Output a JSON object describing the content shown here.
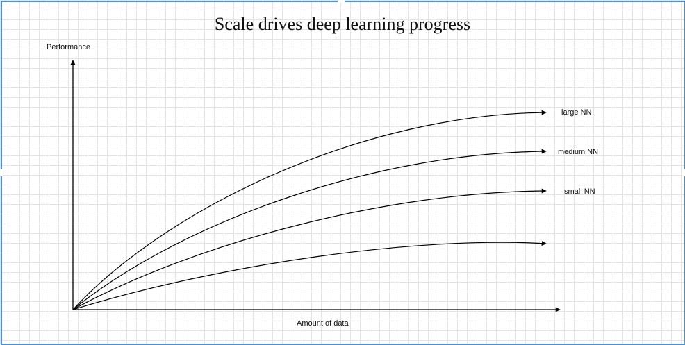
{
  "title": "Scale drives deep learning progress",
  "axes": {
    "y_label": "Performance",
    "x_label": "Amount of data"
  },
  "curves": [
    {
      "label": "large NN"
    },
    {
      "label": "medium NN"
    },
    {
      "label": "small NN"
    },
    {
      "label": ""
    }
  ],
  "colors": {
    "grid": "#e4e4e4",
    "frame": "#4a90d9",
    "stroke": "#000000"
  }
}
